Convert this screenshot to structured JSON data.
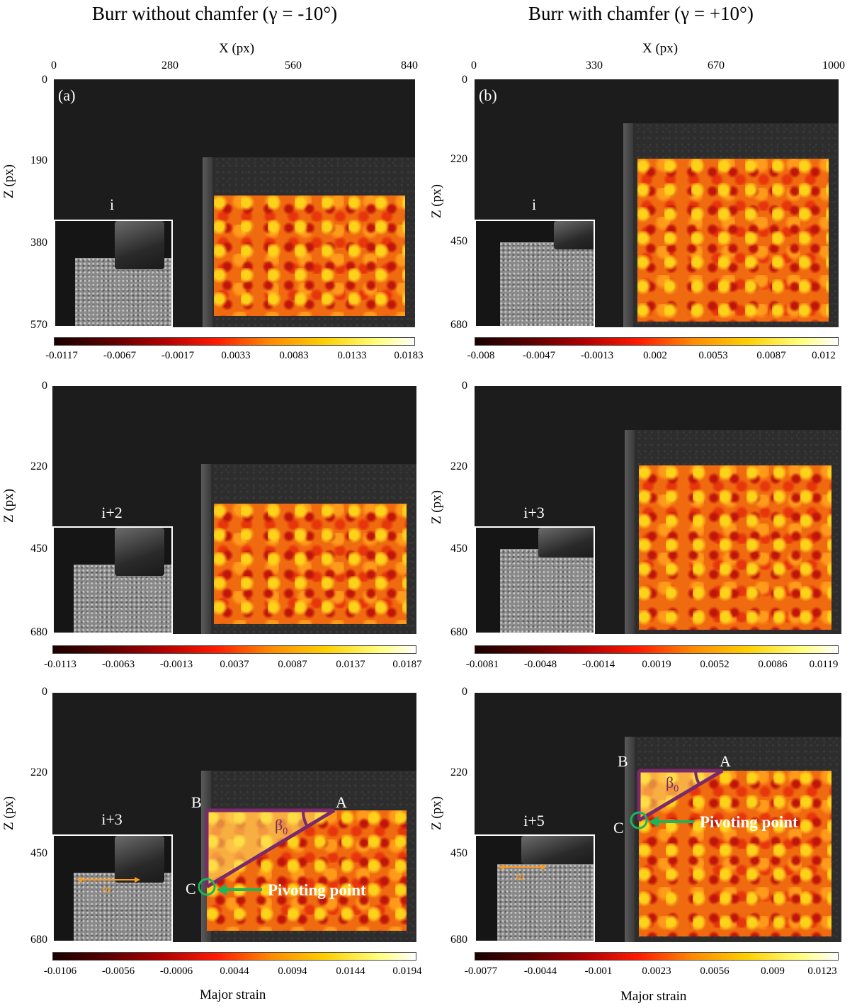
{
  "titles": {
    "left": "Burr without chamfer (γ = -10°)",
    "right": "Burr with chamfer (γ = +10°)"
  },
  "axis_labels": {
    "x": "X (px)",
    "z": "Z (px)",
    "colorbar": "Major strain"
  },
  "left_column": {
    "panel_letter": "(a)",
    "x_ticks": [
      "0",
      "280",
      "560",
      "840"
    ],
    "rows": [
      {
        "y_ticks": [
          "0",
          "190",
          "380",
          "570"
        ],
        "inset_label": "i",
        "colorbar_ticks": [
          "-0.0117",
          "-0.0067",
          "-0.0017",
          "0.0033",
          "0.0083",
          "0.0133",
          "0.0183"
        ]
      },
      {
        "y_ticks": [
          "0",
          "220",
          "450",
          "680"
        ],
        "inset_label": "i+2",
        "colorbar_ticks": [
          "-0.0113",
          "-0.0063",
          "-0.0013",
          "0.0037",
          "0.0087",
          "0.0137",
          "0.0187"
        ]
      },
      {
        "y_ticks": [
          "0",
          "220",
          "450",
          "680"
        ],
        "inset_label": "i+3",
        "colorbar_ticks": [
          "-0.0106",
          "-0.0056",
          "-0.0006",
          "0.0044",
          "0.0094",
          "0.0144",
          "0.0194"
        ],
        "points": {
          "a": "A",
          "b": "B",
          "c": "C"
        },
        "angle": "β",
        "angle_sub": "0",
        "pivot": "Pivoting point",
        "omega": "ω"
      }
    ]
  },
  "right_column": {
    "panel_letter": "(b)",
    "x_ticks": [
      "0",
      "330",
      "670",
      "1000"
    ],
    "rows": [
      {
        "y_ticks": [
          "0",
          "220",
          "450",
          "680"
        ],
        "inset_label": "i",
        "colorbar_ticks": [
          "-0.008",
          "-0.0047",
          "-0.0013",
          "0.002",
          "0.0053",
          "0.0087",
          "0.012"
        ]
      },
      {
        "y_ticks": [
          "0",
          "220",
          "450",
          "680"
        ],
        "inset_label": "i+3",
        "colorbar_ticks": [
          "-0.0081",
          "-0.0048",
          "-0.0014",
          "0.0019",
          "0.0052",
          "0.0086",
          "0.0119"
        ]
      },
      {
        "y_ticks": [
          "0",
          "220",
          "450",
          "680"
        ],
        "inset_label": "i+5",
        "colorbar_ticks": [
          "-0.0077",
          "-0.0044",
          "-0.001",
          "0.0023",
          "0.0056",
          "0.009",
          "0.0123"
        ],
        "points": {
          "a": "A",
          "b": "B",
          "c": "C"
        },
        "angle": "β",
        "angle_sub": "0",
        "pivot": "Pivoting point",
        "omega": "ω"
      }
    ]
  }
}
